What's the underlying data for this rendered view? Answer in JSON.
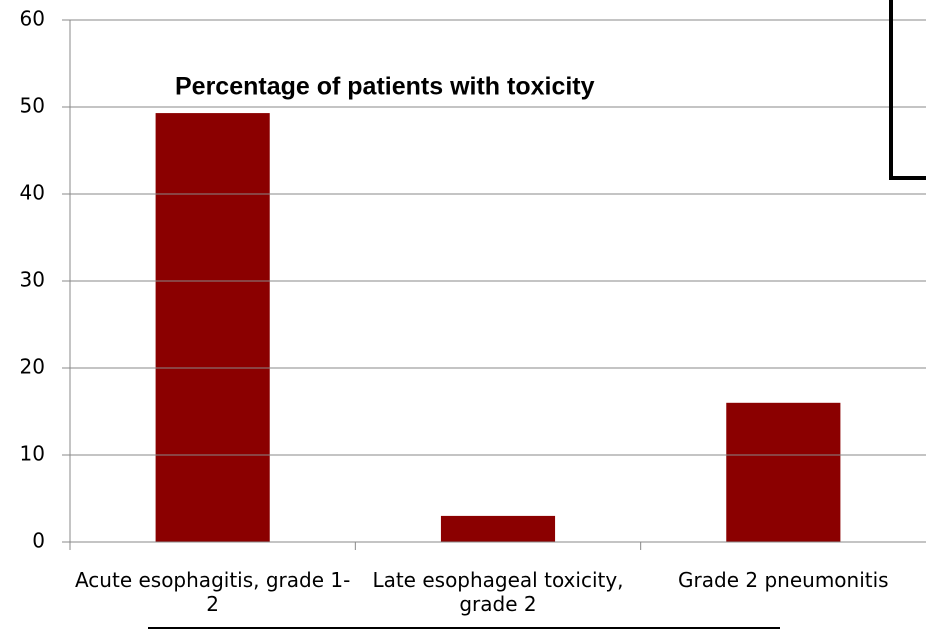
{
  "chart_data": {
    "type": "bar",
    "title": "Percentage of patients with toxicity",
    "categories": [
      "Acute esophagitis, grade 1-2",
      "Late esophageal toxicity, grade 2",
      "Grade 2 pneumonitis"
    ],
    "values": [
      49.3,
      3,
      16
    ],
    "color": "#8b0000",
    "ylim": [
      0,
      60
    ],
    "yticks": [
      0,
      10,
      20,
      30,
      40,
      50,
      60
    ],
    "grid": true
  }
}
